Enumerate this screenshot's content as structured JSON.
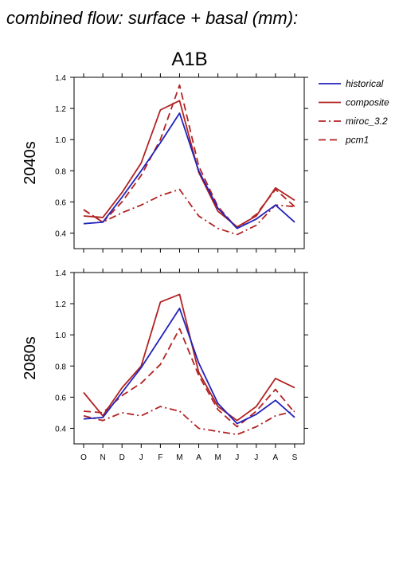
{
  "title": "combined flow: surface + basal (mm):",
  "scenario": "A1B",
  "chart_data": {
    "type": "line",
    "categories": [
      "O",
      "N",
      "D",
      "J",
      "F",
      "M",
      "A",
      "M",
      "J",
      "J",
      "A",
      "S"
    ],
    "ylim": [
      0.3,
      1.4
    ],
    "yticks": [
      "0.4",
      "0.6",
      "0.8",
      "1.0",
      "1.2",
      "1.4"
    ],
    "legend": {
      "placement": "right",
      "entries": [
        {
          "name": "historical",
          "color": "#2222bb",
          "dash": "solid"
        },
        {
          "name": "composite",
          "color": "#b22222",
          "dash": "solid"
        },
        {
          "name": "miroc_3.2",
          "color": "#b22222",
          "dash": "dashdot"
        },
        {
          "name": "pcm1",
          "color": "#b22222",
          "dash": "dashed"
        }
      ]
    },
    "panels": [
      {
        "label": "2040s",
        "series": [
          {
            "name": "historical",
            "values": [
              0.46,
              0.47,
              0.63,
              0.8,
              0.98,
              1.17,
              0.8,
              0.56,
              0.43,
              0.49,
              0.58,
              0.47
            ]
          },
          {
            "name": "composite",
            "values": [
              0.51,
              0.5,
              0.66,
              0.85,
              1.19,
              1.25,
              0.79,
              0.54,
              0.44,
              0.51,
              0.69,
              0.61
            ]
          },
          {
            "name": "miroc_3.2",
            "values": [
              0.55,
              0.47,
              0.53,
              0.58,
              0.64,
              0.68,
              0.51,
              0.43,
              0.39,
              0.45,
              0.58,
              0.57
            ]
          },
          {
            "name": "pcm1",
            "values": [
              0.55,
              0.47,
              0.6,
              0.77,
              1.0,
              1.35,
              0.83,
              0.57,
              0.43,
              0.52,
              0.68,
              0.57
            ]
          }
        ]
      },
      {
        "label": "2080s",
        "series": [
          {
            "name": "historical",
            "values": [
              0.46,
              0.47,
              0.63,
              0.79,
              0.98,
              1.17,
              0.82,
              0.56,
              0.43,
              0.49,
              0.58,
              0.47
            ]
          },
          {
            "name": "composite",
            "values": [
              0.63,
              0.48,
              0.66,
              0.8,
              1.21,
              1.26,
              0.76,
              0.54,
              0.45,
              0.54,
              0.72,
              0.66
            ]
          },
          {
            "name": "miroc_3.2",
            "values": [
              0.48,
              0.45,
              0.5,
              0.48,
              0.54,
              0.51,
              0.4,
              0.38,
              0.36,
              0.41,
              0.48,
              0.51
            ]
          },
          {
            "name": "pcm1",
            "values": [
              0.51,
              0.5,
              0.61,
              0.69,
              0.81,
              1.04,
              0.74,
              0.52,
              0.41,
              0.51,
              0.65,
              0.5
            ]
          }
        ]
      }
    ]
  }
}
